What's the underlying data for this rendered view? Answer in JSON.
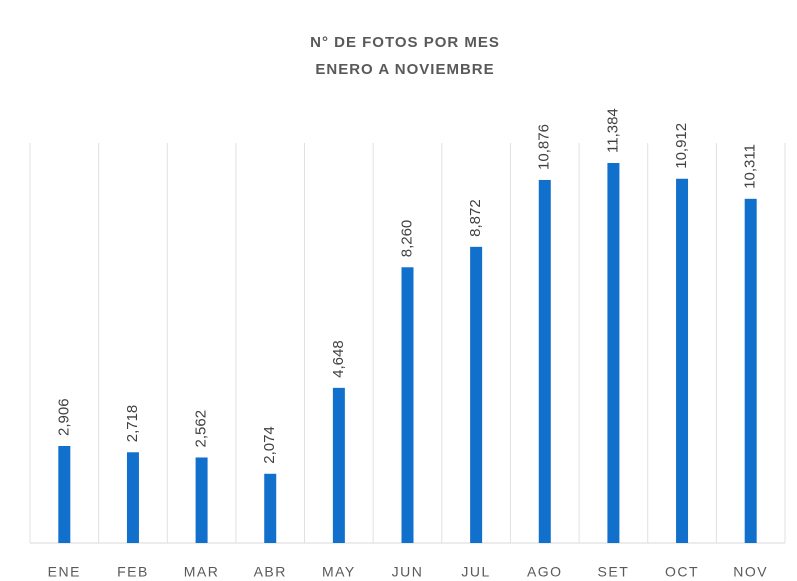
{
  "chart_data": {
    "type": "bar",
    "title": "N° DE FOTOS POR MES",
    "subtitle": "ENERO A NOVIEMBRE",
    "categories": [
      "ENE",
      "FEB",
      "MAR",
      "ABR",
      "MAY",
      "JUN",
      "JUL",
      "AGO",
      "SET",
      "OCT",
      "NOV"
    ],
    "values": [
      2906,
      2718,
      2562,
      2074,
      4648,
      8260,
      8872,
      10876,
      11384,
      10912,
      10311
    ],
    "value_labels": [
      "2,906",
      "2,718",
      "2,562",
      "2,074",
      "4,648",
      "8,260",
      "8,872",
      "10,876",
      "11,384",
      "10,912",
      "10,311"
    ],
    "color": "#1170cc"
  }
}
